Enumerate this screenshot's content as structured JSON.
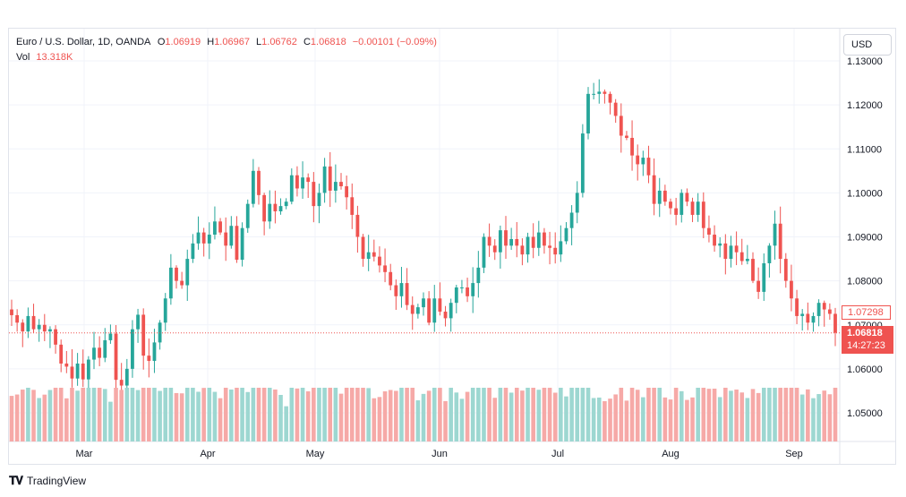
{
  "legend": {
    "symbol": "Euro / U.S. Dollar, 1D, OANDA",
    "o_label": "O",
    "o_value": "1.06919",
    "h_label": "H",
    "h_value": "1.06967",
    "l_label": "L",
    "l_value": "1.06762",
    "c_label": "C",
    "c_value": "1.06818",
    "change": "−0.00101 (−0.09%)",
    "vol_label": "Vol",
    "vol_value": "13.318K"
  },
  "currency_button": "USD",
  "price_labels": {
    "last_visible": "1.07298",
    "current_price": "1.06818",
    "countdown": "14:27:23"
  },
  "brand": "TradingView",
  "colors": {
    "up": "#26a69a",
    "down": "#ef5350",
    "up_vol": "#9dd7d1",
    "down_vol": "#f6a9a7",
    "grid": "#f0f3fa"
  },
  "chart_data": {
    "type": "candlestick",
    "title": "Euro / U.S. Dollar, 1D, OANDA",
    "y_ticks": [
      "1.13000",
      "1.12000",
      "1.11000",
      "1.10000",
      "1.09000",
      "1.08000",
      "1.07000",
      "1.06000",
      "1.05000"
    ],
    "ylim": [
      1.0435,
      1.1325
    ],
    "x_ticks": [
      "Mar",
      "Apr",
      "May",
      "Jun",
      "Jul",
      "Aug",
      "Sep"
    ],
    "grid": true,
    "close": [
      1.0722,
      1.0705,
      1.0685,
      1.072,
      1.069,
      1.07,
      1.0685,
      1.069,
      1.0655,
      1.0612,
      1.0605,
      1.0578,
      1.0612,
      1.0576,
      1.0621,
      1.0648,
      1.0625,
      1.0665,
      1.068,
      1.0575,
      1.0562,
      1.06,
      1.069,
      1.0723,
      1.063,
      1.0618,
      1.066,
      1.0705,
      1.076,
      1.083,
      1.08,
      1.079,
      1.085,
      1.0885,
      1.091,
      1.0885,
      1.0905,
      1.0935,
      1.091,
      1.088,
      1.0925,
      1.0848,
      1.092,
      1.0975,
      1.105,
      1.0995,
      1.0935,
      1.0975,
      1.0958,
      1.097,
      1.098,
      1.104,
      1.101,
      1.1035,
      1.1025,
      1.097,
      1.1,
      1.106,
      1.1005,
      1.1025,
      1.1015,
      1.099,
      1.095,
      1.09,
      1.085,
      1.0865,
      1.0855,
      1.0835,
      1.082,
      1.079,
      1.0765,
      1.0795,
      1.0745,
      1.0725,
      1.074,
      1.076,
      1.0705,
      1.076,
      1.073,
      1.0715,
      1.075,
      1.0785,
      1.0785,
      1.0765,
      1.0795,
      1.083,
      1.09,
      1.088,
      1.0865,
      1.0915,
      1.088,
      1.0895,
      1.088,
      1.086,
      1.09,
      1.0875,
      1.091,
      1.088,
      1.0875,
      1.086,
      1.089,
      1.092,
      1.0955,
      1.1,
      1.1135,
      1.1225,
      1.1225,
      1.123,
      1.1225,
      1.1205,
      1.1175,
      1.113,
      1.1125,
      1.1085,
      1.1065,
      1.108,
      1.104,
      1.0975,
      1.1005,
      1.098,
      1.0965,
      1.095,
      1.1,
      1.098,
      1.095,
      1.098,
      1.092,
      1.0905,
      1.088,
      1.0885,
      1.085,
      1.088,
      1.0865,
      1.0845,
      1.085,
      1.08,
      1.0775,
      1.084,
      1.088,
      1.093,
      1.085,
      1.08,
      1.076,
      1.072,
      1.0725,
      1.0705,
      1.072,
      1.075,
      1.0735,
      1.0725,
      1.0682
    ],
    "volume_unit": "K",
    "vol_max": 15
  }
}
